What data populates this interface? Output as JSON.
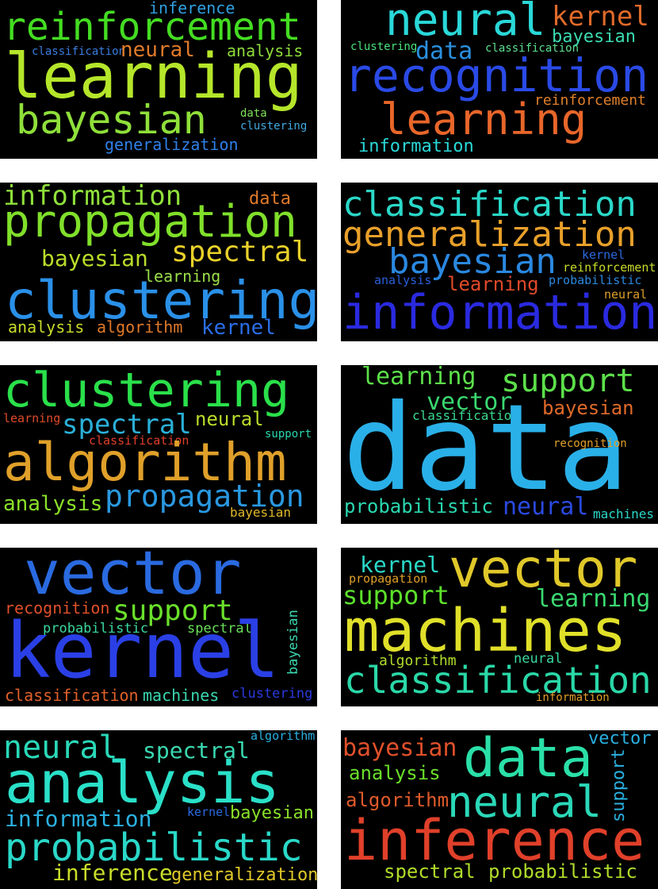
{
  "clouds": [
    {
      "words": [
        {
          "text": "inference",
          "color": "#30a0e0"
        },
        {
          "text": "reinforcement",
          "color": "#44dd22"
        },
        {
          "text": "classification",
          "color": "#3a7ee0"
        },
        {
          "text": "neural",
          "color": "#e07a2a"
        },
        {
          "text": "analysis",
          "color": "#8fdc3a"
        },
        {
          "text": "learning",
          "color": "#b5e62a"
        },
        {
          "text": "bayesian",
          "color": "#8fe03a"
        },
        {
          "text": "data",
          "color": "#7ee05a"
        },
        {
          "text": "clustering",
          "color": "#40a8e0"
        },
        {
          "text": "generalization",
          "color": "#2f80e8"
        }
      ]
    },
    {
      "words": [
        {
          "text": "neural",
          "color": "#2ad8d8"
        },
        {
          "text": "kernel",
          "color": "#e06a2a"
        },
        {
          "text": "bayesian",
          "color": "#3adbb0"
        },
        {
          "text": "clustering",
          "color": "#4ae07a"
        },
        {
          "text": "data",
          "color": "#2a90e0"
        },
        {
          "text": "classification",
          "color": "#5ce090"
        },
        {
          "text": "recognition",
          "color": "#2a4ae6"
        },
        {
          "text": "reinforcement",
          "color": "#e0802a"
        },
        {
          "text": "learning",
          "color": "#e8662a"
        },
        {
          "text": "information",
          "color": "#2ad8d8"
        }
      ]
    },
    {
      "words": [
        {
          "text": "information",
          "color": "#8fe03a"
        },
        {
          "text": "data",
          "color": "#e07a2a"
        },
        {
          "text": "propagation",
          "color": "#80e02a"
        },
        {
          "text": "bayesian",
          "color": "#b8dc2a"
        },
        {
          "text": "spectral",
          "color": "#e8d02a"
        },
        {
          "text": "learning",
          "color": "#9ae04a"
        },
        {
          "text": "clustering",
          "color": "#2a90e8"
        },
        {
          "text": "analysis",
          "color": "#c8dc2a"
        },
        {
          "text": "algorithm",
          "color": "#e07a2a"
        },
        {
          "text": "kernel",
          "color": "#2a6ee8"
        }
      ]
    },
    {
      "words": [
        {
          "text": "classification",
          "color": "#2ad8c8"
        },
        {
          "text": "generalization",
          "color": "#e8a02a"
        },
        {
          "text": "bayesian",
          "color": "#2a88e0"
        },
        {
          "text": "kernel",
          "color": "#2a6ae0"
        },
        {
          "text": "reinforcement",
          "color": "#c8dc2a"
        },
        {
          "text": "analysis",
          "color": "#2a60d8"
        },
        {
          "text": "learning",
          "color": "#e04a2a"
        },
        {
          "text": "probabilistic",
          "color": "#2a88e0"
        },
        {
          "text": "neural",
          "color": "#e0a02a"
        },
        {
          "text": "information",
          "color": "#2a2ae0"
        }
      ]
    },
    {
      "words": [
        {
          "text": "clustering",
          "color": "#2ae04a"
        },
        {
          "text": "learning",
          "color": "#e04a2a"
        },
        {
          "text": "spectral",
          "color": "#2ab0d8"
        },
        {
          "text": "neural",
          "color": "#b8dc2a"
        },
        {
          "text": "classification",
          "color": "#e0402a"
        },
        {
          "text": "support",
          "color": "#2ad8b0"
        },
        {
          "text": "algorithm",
          "color": "#e0a02a"
        },
        {
          "text": "analysis",
          "color": "#8ae02a"
        },
        {
          "text": "propagation",
          "color": "#2a98e0"
        },
        {
          "text": "bayesian",
          "color": "#e0b82a"
        }
      ]
    },
    {
      "words": [
        {
          "text": "learning",
          "color": "#5ce04a"
        },
        {
          "text": "support",
          "color": "#5ce04a"
        },
        {
          "text": "vector",
          "color": "#3ad870"
        },
        {
          "text": "classification",
          "color": "#3ad890"
        },
        {
          "text": "bayesian",
          "color": "#e06a2a"
        },
        {
          "text": "data",
          "color": "#2ab0e8"
        },
        {
          "text": "recognition",
          "color": "#e0a02a"
        },
        {
          "text": "probabilistic",
          "color": "#2ad8b0"
        },
        {
          "text": "neural",
          "color": "#2a4ae0"
        },
        {
          "text": "machines",
          "color": "#2ad8c8"
        }
      ]
    },
    {
      "words": [
        {
          "text": "vector",
          "color": "#2a6ae0"
        },
        {
          "text": "recognition",
          "color": "#e0502a"
        },
        {
          "text": "support",
          "color": "#6ae02a"
        },
        {
          "text": "probabilistic",
          "color": "#3ad8a0"
        },
        {
          "text": "spectral",
          "color": "#6ae05a"
        },
        {
          "text": "bayesian",
          "color": "#3ad8b0"
        },
        {
          "text": "kernel",
          "color": "#2a40e6"
        },
        {
          "text": "classification",
          "color": "#e0602a"
        },
        {
          "text": "machines",
          "color": "#3ad8b0"
        },
        {
          "text": "clustering",
          "color": "#2a3ae0"
        }
      ]
    },
    {
      "words": [
        {
          "text": "kernel",
          "color": "#2ad8c8"
        },
        {
          "text": "propagation",
          "color": "#e0a02a"
        },
        {
          "text": "vector",
          "color": "#e0c82a"
        },
        {
          "text": "support",
          "color": "#5ce02a"
        },
        {
          "text": "learning",
          "color": "#3ad870"
        },
        {
          "text": "machines",
          "color": "#e0e02a"
        },
        {
          "text": "algorithm",
          "color": "#b0dc2a"
        },
        {
          "text": "neural",
          "color": "#3ad8a0"
        },
        {
          "text": "classification",
          "color": "#2ad8a8"
        },
        {
          "text": "information",
          "color": "#e0a02a"
        }
      ]
    },
    {
      "words": [
        {
          "text": "algorithm",
          "color": "#2ab0e0"
        },
        {
          "text": "neural",
          "color": "#2ad8b8"
        },
        {
          "text": "spectral",
          "color": "#3ad8b0"
        },
        {
          "text": "analysis",
          "color": "#2ae0c8"
        },
        {
          "text": "information",
          "color": "#2ab0e0"
        },
        {
          "text": "kernel",
          "color": "#2a6ae0"
        },
        {
          "text": "bayesian",
          "color": "#8ae02a"
        },
        {
          "text": "probabilistic",
          "color": "#2ad8c8"
        },
        {
          "text": "inference",
          "color": "#c8dc2a"
        },
        {
          "text": "generalization",
          "color": "#e0c82a"
        }
      ]
    },
    {
      "words": [
        {
          "text": "bayesian",
          "color": "#e0502a"
        },
        {
          "text": "data",
          "color": "#2ae0a8"
        },
        {
          "text": "vector",
          "color": "#2ab0e0"
        },
        {
          "text": "analysis",
          "color": "#6ae02a"
        },
        {
          "text": "support",
          "color": "#2ab0e0"
        },
        {
          "text": "algorithm",
          "color": "#e05a2a"
        },
        {
          "text": "neural",
          "color": "#2ad8b8"
        },
        {
          "text": "inference",
          "color": "#e0402a"
        },
        {
          "text": "spectral",
          "color": "#b0dc2a"
        },
        {
          "text": "probabilistic",
          "color": "#b0dc2a"
        }
      ]
    }
  ]
}
